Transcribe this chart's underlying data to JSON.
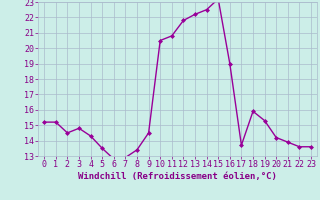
{
  "x": [
    0,
    1,
    2,
    3,
    4,
    5,
    6,
    7,
    8,
    9,
    10,
    11,
    12,
    13,
    14,
    15,
    16,
    17,
    18,
    19,
    20,
    21,
    22,
    23
  ],
  "y": [
    15.2,
    15.2,
    14.5,
    14.8,
    14.3,
    13.5,
    12.8,
    12.9,
    13.4,
    14.5,
    20.5,
    20.8,
    21.8,
    22.2,
    22.5,
    23.2,
    19.0,
    13.7,
    15.9,
    15.3,
    14.2,
    13.9,
    13.6,
    13.6
  ],
  "ylim": [
    13,
    23
  ],
  "xlim": [
    -0.5,
    23.5
  ],
  "yticks": [
    13,
    14,
    15,
    16,
    17,
    18,
    19,
    20,
    21,
    22,
    23
  ],
  "xticks": [
    0,
    1,
    2,
    3,
    4,
    5,
    6,
    7,
    8,
    9,
    10,
    11,
    12,
    13,
    14,
    15,
    16,
    17,
    18,
    19,
    20,
    21,
    22,
    23
  ],
  "line_color": "#990099",
  "marker": "D",
  "marker_size": 2.0,
  "line_width": 1.0,
  "bg_color": "#cceee8",
  "grid_color": "#aabbcc",
  "xlabel": "Windchill (Refroidissement éolien,°C)",
  "xlabel_fontsize": 6.5,
  "tick_fontsize": 6.0,
  "tick_color": "#880088",
  "label_color": "#880088"
}
